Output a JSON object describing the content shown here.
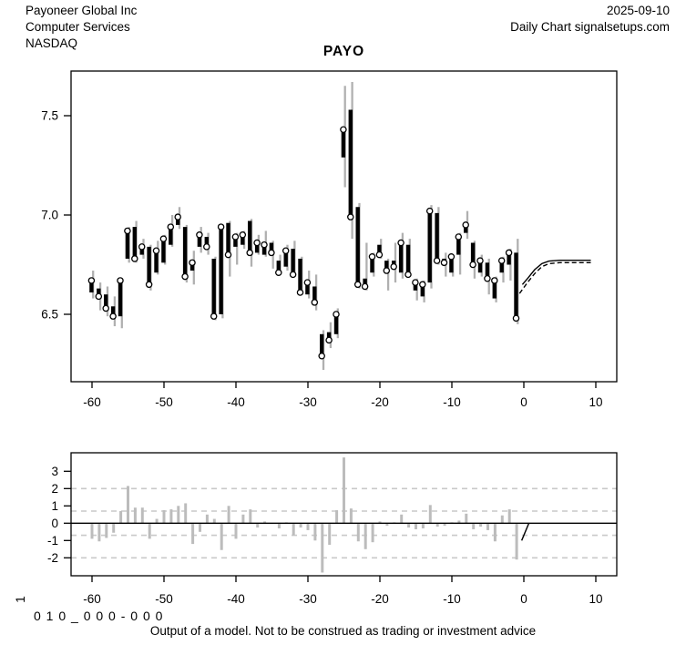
{
  "header": {
    "company": "Payoneer Global Inc",
    "sector": "Computer Services",
    "exchange": "NASDAQ",
    "date": "2025-09-10",
    "source": "Daily Chart signalsetups.com",
    "title": "PAYO"
  },
  "footer": {
    "rotated_label": "1",
    "code": "0 1 0 _ 0 0 0 - 0 0 0",
    "disclaimer": "Output of a model. Not to be construed as trading or investment advice"
  },
  "colors": {
    "background": "#ffffff",
    "range_gray": "#b0b0b0",
    "body_black": "#000000",
    "indicator_bar": "#bcbcbc",
    "dashed_grid": "#c9c9c9",
    "frame": "#000000"
  },
  "chart_data": [
    {
      "type": "ohlc",
      "title": "PAYO",
      "xlabel": "",
      "ylabel": "",
      "x_ticks": [
        -60,
        -50,
        -40,
        -30,
        -20,
        -10,
        0,
        10
      ],
      "y_ticks": [
        7.5,
        7.0,
        6.5
      ],
      "xlim": [
        -62.9,
        12.9
      ],
      "ylim": [
        6.16,
        7.73
      ],
      "grid": false,
      "marker_meaning": "open circle marks the close of each daily bar; gray line is high-low range; thick black bar is open-close range",
      "bars": [
        {
          "t": -60,
          "o": 6.61,
          "h": 6.72,
          "l": 6.58,
          "c": 6.67
        },
        {
          "t": -59,
          "o": 6.63,
          "h": 6.66,
          "l": 6.52,
          "c": 6.59
        },
        {
          "t": -58,
          "o": 6.6,
          "h": 6.64,
          "l": 6.49,
          "c": 6.53
        },
        {
          "t": -57,
          "o": 6.54,
          "h": 6.59,
          "l": 6.44,
          "c": 6.49
        },
        {
          "t": -56,
          "o": 6.49,
          "h": 6.68,
          "l": 6.43,
          "c": 6.67
        },
        {
          "t": -55,
          "o": 6.78,
          "h": 6.94,
          "l": 6.76,
          "c": 6.92
        },
        {
          "t": -54,
          "o": 6.94,
          "h": 6.97,
          "l": 6.76,
          "c": 6.78
        },
        {
          "t": -53,
          "o": 6.8,
          "h": 6.88,
          "l": 6.78,
          "c": 6.84
        },
        {
          "t": -52,
          "o": 6.84,
          "h": 6.85,
          "l": 6.62,
          "c": 6.65
        },
        {
          "t": -51,
          "o": 6.71,
          "h": 6.87,
          "l": 6.7,
          "c": 6.82
        },
        {
          "t": -50,
          "o": 6.76,
          "h": 6.9,
          "l": 6.75,
          "c": 6.88
        },
        {
          "t": -49,
          "o": 6.85,
          "h": 7.0,
          "l": 6.84,
          "c": 6.94
        },
        {
          "t": -48,
          "o": 6.95,
          "h": 7.04,
          "l": 6.93,
          "c": 6.99
        },
        {
          "t": -47,
          "o": 6.94,
          "h": 6.95,
          "l": 6.66,
          "c": 6.69
        },
        {
          "t": -46,
          "o": 6.72,
          "h": 6.82,
          "l": 6.65,
          "c": 6.76
        },
        {
          "t": -45,
          "o": 6.84,
          "h": 6.94,
          "l": 6.81,
          "c": 6.9
        },
        {
          "t": -44,
          "o": 6.89,
          "h": 6.91,
          "l": 6.8,
          "c": 6.84
        },
        {
          "t": -43,
          "o": 6.78,
          "h": 6.79,
          "l": 6.47,
          "c": 6.49
        },
        {
          "t": -42,
          "o": 6.5,
          "h": 6.95,
          "l": 6.48,
          "c": 6.94
        },
        {
          "t": -41,
          "o": 6.96,
          "h": 6.97,
          "l": 6.69,
          "c": 6.8
        },
        {
          "t": -40,
          "o": 6.84,
          "h": 6.91,
          "l": 6.75,
          "c": 6.89
        },
        {
          "t": -39,
          "o": 6.85,
          "h": 6.92,
          "l": 6.83,
          "c": 6.9
        },
        {
          "t": -38,
          "o": 6.97,
          "h": 6.98,
          "l": 6.74,
          "c": 6.81
        },
        {
          "t": -37,
          "o": 6.81,
          "h": 6.9,
          "l": 6.8,
          "c": 6.86
        },
        {
          "t": -36,
          "o": 6.8,
          "h": 6.92,
          "l": 6.79,
          "c": 6.85
        },
        {
          "t": -35,
          "o": 6.86,
          "h": 6.87,
          "l": 6.73,
          "c": 6.81
        },
        {
          "t": -34,
          "o": 6.77,
          "h": 6.8,
          "l": 6.7,
          "c": 6.71
        },
        {
          "t": -33,
          "o": 6.74,
          "h": 6.85,
          "l": 6.72,
          "c": 6.82
        },
        {
          "t": -32,
          "o": 6.83,
          "h": 6.87,
          "l": 6.69,
          "c": 6.7
        },
        {
          "t": -31,
          "o": 6.78,
          "h": 6.79,
          "l": 6.6,
          "c": 6.61
        },
        {
          "t": -30,
          "o": 6.6,
          "h": 6.72,
          "l": 6.58,
          "c": 6.66
        },
        {
          "t": -29,
          "o": 6.64,
          "h": 6.7,
          "l": 6.52,
          "c": 6.56
        },
        {
          "t": -28,
          "o": 6.4,
          "h": 6.42,
          "l": 6.22,
          "c": 6.29
        },
        {
          "t": -27,
          "o": 6.41,
          "h": 6.46,
          "l": 6.33,
          "c": 6.37
        },
        {
          "t": -26,
          "o": 6.4,
          "h": 6.53,
          "l": 6.38,
          "c": 6.5
        },
        {
          "t": -25,
          "o": 7.29,
          "h": 7.65,
          "l": 7.14,
          "c": 7.43
        },
        {
          "t": -24,
          "o": 7.53,
          "h": 7.67,
          "l": 6.88,
          "c": 6.99
        },
        {
          "t": -23,
          "o": 7.04,
          "h": 7.06,
          "l": 6.63,
          "c": 6.65
        },
        {
          "t": -22,
          "o": 6.68,
          "h": 6.86,
          "l": 6.62,
          "c": 6.64
        },
        {
          "t": -21,
          "o": 6.71,
          "h": 6.81,
          "l": 6.69,
          "c": 6.79
        },
        {
          "t": -20,
          "o": 6.85,
          "h": 6.88,
          "l": 6.78,
          "c": 6.8
        },
        {
          "t": -19,
          "o": 6.77,
          "h": 6.78,
          "l": 6.62,
          "c": 6.72
        },
        {
          "t": -18,
          "o": 6.77,
          "h": 6.86,
          "l": 6.66,
          "c": 6.74
        },
        {
          "t": -17,
          "o": 6.71,
          "h": 6.91,
          "l": 6.68,
          "c": 6.86
        },
        {
          "t": -16,
          "o": 6.85,
          "h": 6.88,
          "l": 6.69,
          "c": 6.7
        },
        {
          "t": -15,
          "o": 6.62,
          "h": 6.68,
          "l": 6.57,
          "c": 6.66
        },
        {
          "t": -14,
          "o": 6.59,
          "h": 6.67,
          "l": 6.56,
          "c": 6.65
        },
        {
          "t": -13,
          "o": 6.66,
          "h": 7.05,
          "l": 6.63,
          "c": 7.02
        },
        {
          "t": -12,
          "o": 7.01,
          "h": 7.04,
          "l": 6.75,
          "c": 6.77
        },
        {
          "t": -11,
          "o": 6.78,
          "h": 6.81,
          "l": 6.69,
          "c": 6.76
        },
        {
          "t": -10,
          "o": 6.71,
          "h": 6.8,
          "l": 6.69,
          "c": 6.79
        },
        {
          "t": -9,
          "o": 6.8,
          "h": 6.91,
          "l": 6.7,
          "c": 6.89
        },
        {
          "t": -8,
          "o": 6.91,
          "h": 7.02,
          "l": 6.88,
          "c": 6.95
        },
        {
          "t": -7,
          "o": 6.86,
          "h": 6.87,
          "l": 6.68,
          "c": 6.75
        },
        {
          "t": -6,
          "o": 6.71,
          "h": 6.8,
          "l": 6.69,
          "c": 6.77
        },
        {
          "t": -5,
          "o": 6.76,
          "h": 6.78,
          "l": 6.6,
          "c": 6.68
        },
        {
          "t": -4,
          "o": 6.58,
          "h": 6.69,
          "l": 6.56,
          "c": 6.67
        },
        {
          "t": -3,
          "o": 6.71,
          "h": 6.79,
          "l": 6.66,
          "c": 6.77
        },
        {
          "t": -2,
          "o": 6.75,
          "h": 6.83,
          "l": 6.67,
          "c": 6.81
        },
        {
          "t": -1,
          "o": 6.81,
          "h": 6.88,
          "l": 6.45,
          "c": 6.48
        }
      ],
      "forecast": {
        "solid": {
          "x": [
            -0.2,
            0.5,
            1.5,
            2.5,
            3.5,
            5,
            9.3
          ],
          "y": [
            6.65,
            6.68,
            6.725,
            6.755,
            6.768,
            6.772,
            6.772
          ]
        },
        "dashed": {
          "x": [
            -0.6,
            0.5,
            1.5,
            2.5,
            3.5,
            5,
            9.3
          ],
          "y": [
            6.605,
            6.66,
            6.705,
            6.74,
            6.755,
            6.76,
            6.76
          ]
        }
      }
    },
    {
      "type": "bar",
      "title": "",
      "xlabel": "",
      "ylabel": "",
      "x_ticks": [
        -60,
        -50,
        -40,
        -30,
        -20,
        -10,
        0,
        10
      ],
      "y_ticks": [
        3,
        2,
        1,
        0,
        -1,
        -2
      ],
      "xlim": [
        -62.9,
        12.9
      ],
      "ylim": [
        -3.05,
        4.07
      ],
      "dashed_hlines": [
        2,
        0.7,
        -0.7,
        -2
      ],
      "solid_hline": 0,
      "x": [
        -60,
        -59,
        -58,
        -57,
        -56,
        -55,
        -54,
        -53,
        -52,
        -51,
        -50,
        -49,
        -48,
        -47,
        -46,
        -45,
        -44,
        -43,
        -42,
        -41,
        -40,
        -39,
        -38,
        -37,
        -36,
        -35,
        -34,
        -33,
        -32,
        -31,
        -30,
        -29,
        -28,
        -27,
        -26,
        -25,
        -24,
        -23,
        -22,
        -21,
        -20,
        -19,
        -18,
        -17,
        -16,
        -15,
        -14,
        -13,
        -12,
        -11,
        -10,
        -9,
        -8,
        -7,
        -6,
        -5,
        -4,
        -3,
        -2,
        -1
      ],
      "values": [
        -0.9,
        -1.05,
        -0.85,
        -0.55,
        0.7,
        2.15,
        0.9,
        0.9,
        -0.9,
        0.25,
        0.75,
        0.8,
        1.0,
        1.15,
        -1.2,
        -0.5,
        0.5,
        0.25,
        -1.55,
        1.0,
        -0.9,
        0.5,
        0.8,
        -0.25,
        0.1,
        -0.05,
        -0.3,
        0.05,
        -0.7,
        -0.25,
        -0.4,
        -1.0,
        -2.85,
        -1.25,
        0.75,
        3.8,
        0.85,
        -1.05,
        -1.5,
        -1.1,
        0.1,
        -0.15,
        0.05,
        0.5,
        -0.25,
        -0.35,
        -0.3,
        1.05,
        -0.2,
        -0.15,
        0.05,
        0.15,
        0.55,
        -0.35,
        -0.2,
        -0.4,
        -1.05,
        0.45,
        0.8,
        -2.1
      ],
      "forecast_segment": {
        "x": [
          -0.3,
          0.7
        ],
        "y": [
          -1.0,
          0
        ]
      }
    }
  ]
}
